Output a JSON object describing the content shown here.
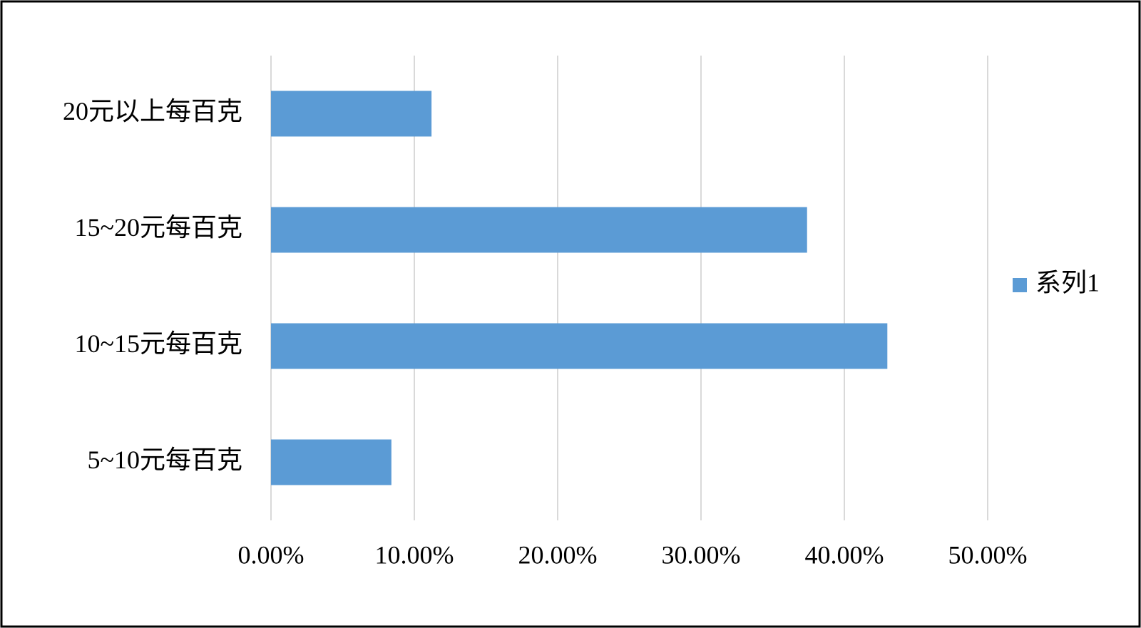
{
  "chart_data": {
    "type": "bar",
    "orientation": "horizontal",
    "categories": [
      "20元以上每百克",
      "15~20元每百克",
      "10~15元每百克",
      "5~10元每百克"
    ],
    "series": [
      {
        "name": "系列1",
        "color": "#5b9bd5",
        "values": [
          11.2,
          37.4,
          43.0,
          8.4
        ]
      }
    ],
    "xlim": [
      0,
      50
    ],
    "xticks": [
      {
        "value": 0,
        "label": "0.00%"
      },
      {
        "value": 10,
        "label": "10.00%"
      },
      {
        "value": 20,
        "label": "20.00%"
      },
      {
        "value": 30,
        "label": "30.00%"
      },
      {
        "value": 40,
        "label": "40.00%"
      },
      {
        "value": 50,
        "label": "50.00%"
      }
    ],
    "grid": true,
    "legend": "right"
  }
}
